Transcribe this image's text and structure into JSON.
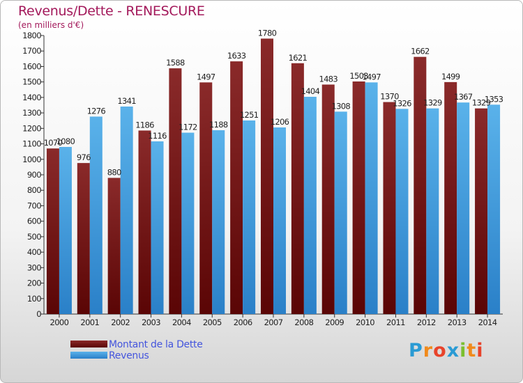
{
  "header": {
    "title": "Revenus/Dette - RENESCURE",
    "subtitle": "(en milliers d'€)"
  },
  "colors": {
    "dette": "#7a1212",
    "revenus": "#2f8fd8",
    "title": "#a3195b",
    "legend_text": "#4455dd"
  },
  "chart_data": {
    "type": "bar",
    "title": "Revenus/Dette - RENESCURE",
    "subtitle": "(en milliers d'€)",
    "xlabel": "",
    "ylabel": "",
    "ylim": [
      0,
      1800
    ],
    "ytick_step": 100,
    "grid": false,
    "legend": "bottom-left",
    "categories": [
      "2000",
      "2001",
      "2002",
      "2003",
      "2004",
      "2005",
      "2006",
      "2007",
      "2008",
      "2009",
      "2010",
      "2011",
      "2012",
      "2013",
      "2014"
    ],
    "series": [
      {
        "name": "Montant de la Dette",
        "color": "#7a1212",
        "values": [
          1070,
          976,
          880,
          1186,
          1588,
          1497,
          1633,
          1780,
          1621,
          1483,
          1503,
          1370,
          1662,
          1499,
          1329
        ]
      },
      {
        "name": "Revenus",
        "color": "#2f8fd8",
        "values": [
          1080,
          1276,
          1341,
          1116,
          1172,
          1188,
          1251,
          1206,
          1404,
          1308,
          1497,
          1326,
          1329,
          1367,
          1353
        ]
      }
    ]
  },
  "legend": {
    "items": [
      {
        "label": "Montant de la Dette"
      },
      {
        "label": "Revenus"
      }
    ]
  },
  "logo": {
    "letters": [
      {
        "ch": "P",
        "color": "#2a9bd4"
      },
      {
        "ch": "r",
        "color": "#f08a1c"
      },
      {
        "ch": "o",
        "color": "#e8432a"
      },
      {
        "ch": "x",
        "color": "#2a9bd4"
      },
      {
        "ch": "i",
        "color": "#7bbf2f"
      },
      {
        "ch": "t",
        "color": "#f08a1c"
      },
      {
        "ch": "i",
        "color": "#e8432a"
      }
    ]
  }
}
